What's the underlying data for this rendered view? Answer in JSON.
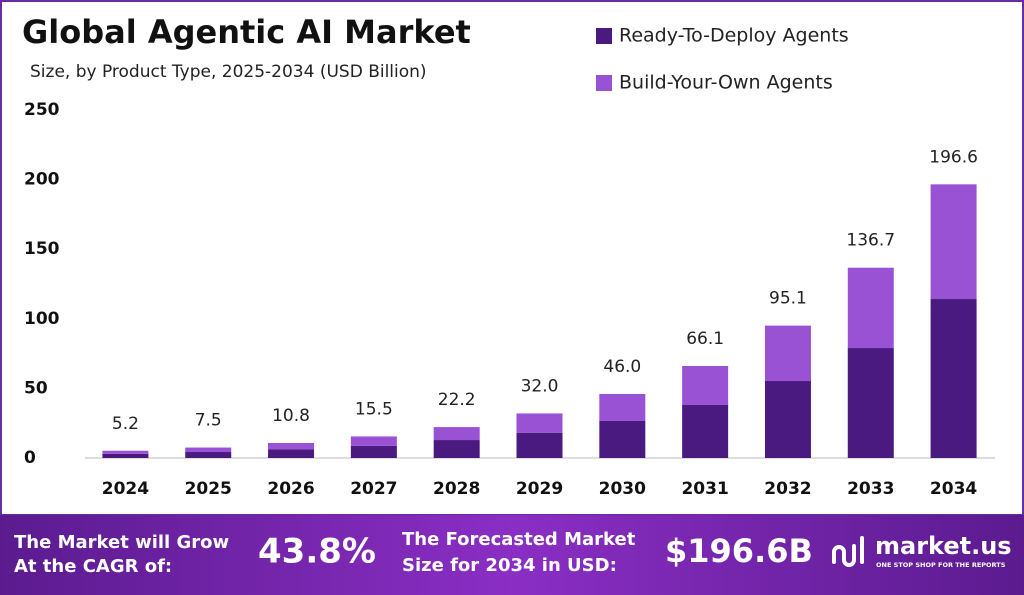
{
  "chart_data": {
    "type": "stacked-bar",
    "title": "Global Agentic AI Market",
    "subtitle": "Size, by Product Type, 2025-2034 (USD Billion)",
    "categories": [
      "2024",
      "2025",
      "2026",
      "2027",
      "2028",
      "2029",
      "2030",
      "2031",
      "2032",
      "2033",
      "2034"
    ],
    "series": [
      {
        "name": "Ready-To-Deploy Agents",
        "color": "#4b1a80",
        "values": [
          3.0,
          4.3,
          6.1,
          8.7,
          12.9,
          18.0,
          26.6,
          38.1,
          55.3,
          79.0,
          114.2
        ]
      },
      {
        "name": "Build-Your-Own Agents",
        "color": "#9a52d4",
        "values": [
          2.2,
          3.2,
          4.7,
          6.8,
          9.3,
          14.0,
          19.4,
          28.0,
          39.8,
          57.7,
          82.4
        ]
      }
    ],
    "totals": [
      5.2,
      7.5,
      10.8,
      15.5,
      22.2,
      32.0,
      46.0,
      66.1,
      95.1,
      136.7,
      196.6
    ],
    "total_labels": [
      "5.2",
      "7.5",
      "10.8",
      "15.5",
      "22.2",
      "32.0",
      "46.0",
      "66.1",
      "95.1",
      "136.7",
      "196.6"
    ],
    "ylim": [
      0,
      250
    ],
    "yticks": [
      0,
      50,
      100,
      150,
      200,
      250
    ],
    "grid": false
  },
  "banner": {
    "cagr_text": [
      "The Market will Grow",
      "At the CAGR of:"
    ],
    "cagr": "43.8%",
    "forecast_text": [
      "The Forecasted Market",
      "Size for 2034 in USD:"
    ],
    "forecast": "$196.6B",
    "brand": "market.us",
    "tagline": "ONE STOP SHOP FOR THE REPORTS"
  }
}
